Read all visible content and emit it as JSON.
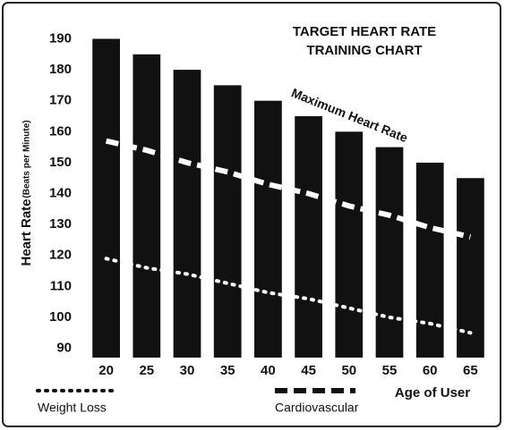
{
  "chart_data": {
    "type": "bar",
    "title_lines": [
      "TARGET HEART RATE",
      "TRAINING CHART"
    ],
    "y_label": "Heart Rate",
    "y_label_note": "(Beats per Minute)",
    "x_label": "Age of User",
    "annotation": "Maximum Heart Rate",
    "categories": [
      "20",
      "25",
      "30",
      "35",
      "40",
      "45",
      "50",
      "55",
      "60",
      "65"
    ],
    "values": [
      190,
      185,
      180,
      175,
      170,
      165,
      160,
      155,
      150,
      145
    ],
    "color": "#111111",
    "series": [
      {
        "name": "Weight Loss",
        "color": "#ffffff",
        "style": "dotted",
        "values": [
          119,
          116,
          114,
          111,
          108,
          106,
          103,
          100,
          98,
          95
        ]
      },
      {
        "name": "Cardiovascular",
        "color": "#ffffff",
        "style": "dashed",
        "values": [
          157,
          154,
          150,
          147,
          143,
          140,
          136,
          133,
          129,
          126
        ]
      }
    ],
    "ylim": [
      87,
      191
    ],
    "yticks": [
      90,
      100,
      110,
      120,
      130,
      140,
      150,
      160,
      170,
      180,
      190
    ],
    "grid": false
  }
}
